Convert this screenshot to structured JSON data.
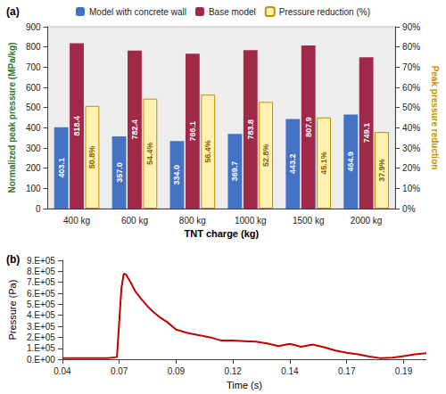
{
  "chart_data": [
    {
      "type": "bar",
      "title": "(a)",
      "categories": [
        "400 kg",
        "600 kg",
        "800 kg",
        "1000 kg",
        "1500 kg",
        "2000 kg"
      ],
      "x_label": "TNT charge (kg)",
      "y_label": "Normalized peak pressure (MPa/kg)",
      "y2_label": "Peak pressure reduction",
      "series": [
        {
          "name": "Model with concrete wall",
          "color": "#4472C4",
          "values": [
            403.1,
            357.0,
            334.0,
            369.7,
            443.2,
            464.9
          ],
          "value_labels": [
            "403.1",
            "357.0",
            "334.0",
            "369.7",
            "443.2",
            "464.9"
          ]
        },
        {
          "name": "Base model",
          "color": "#A0294A",
          "values": [
            818.4,
            782.4,
            766.1,
            783.8,
            807.9,
            749.1
          ],
          "value_labels": [
            "818.4",
            "782.4",
            "766.1",
            "783.8",
            "807.9",
            "749.1"
          ]
        },
        {
          "name": "Pressure reduction (%)",
          "color": "#FFF2B0",
          "axis": "y2",
          "values": [
            50.8,
            54.4,
            56.4,
            52.8,
            45.1,
            37.9
          ],
          "value_labels": [
            "50.8%",
            "54.4%",
            "56.4%",
            "52.8%",
            "45.1%",
            "37.9%"
          ]
        }
      ],
      "ylim": [
        0,
        900
      ],
      "yticks": [
        0,
        100,
        200,
        300,
        400,
        500,
        600,
        700,
        800,
        900
      ],
      "y2lim": [
        0,
        90
      ],
      "y2ticks": [
        {
          "value": 0,
          "label": "0%"
        },
        {
          "value": 10,
          "label": "10%"
        },
        {
          "value": 20,
          "label": "20%"
        },
        {
          "value": 30,
          "label": "30%"
        },
        {
          "value": 40,
          "label": "40%"
        },
        {
          "value": 50,
          "label": "50%"
        },
        {
          "value": 60,
          "label": "60%"
        },
        {
          "value": 70,
          "label": "70%"
        },
        {
          "value": 80,
          "label": "80%"
        },
        {
          "value": 90,
          "label": "90%"
        }
      ],
      "legend": "top",
      "data_labels": true,
      "grid": false
    },
    {
      "type": "line",
      "title": "(b)",
      "x_label": "Time (s)",
      "y_label": "Pressure (Pa)",
      "color": "#C00000",
      "x": [
        0.04,
        0.05,
        0.06,
        0.064,
        0.066,
        0.067,
        0.068,
        0.07,
        0.072,
        0.075,
        0.078,
        0.08,
        0.083,
        0.086,
        0.09,
        0.095,
        0.1,
        0.105,
        0.11,
        0.115,
        0.12,
        0.125,
        0.13,
        0.135,
        0.14,
        0.145,
        0.15,
        0.155,
        0.16,
        0.165,
        0.17,
        0.175,
        0.18,
        0.185,
        0.19,
        0.195,
        0.2
      ],
      "values": [
        10000,
        10000,
        10000,
        20000,
        650000,
        780000,
        770000,
        700000,
        620000,
        540000,
        470000,
        430000,
        380000,
        340000,
        270000,
        240000,
        220000,
        200000,
        170000,
        170000,
        165000,
        160000,
        145000,
        120000,
        140000,
        115000,
        135000,
        110000,
        80000,
        60000,
        45000,
        25000,
        10000,
        15000,
        30000,
        45000,
        55000
      ],
      "xlim": [
        0.04,
        0.2
      ],
      "xticks": [
        {
          "value": 0.04,
          "label": "0.04"
        },
        {
          "value": 0.065,
          "label": "0.07"
        },
        {
          "value": 0.09,
          "label": "0.09"
        },
        {
          "value": 0.115,
          "label": "0.12"
        },
        {
          "value": 0.14,
          "label": "0.14"
        },
        {
          "value": 0.165,
          "label": "0.17"
        },
        {
          "value": 0.19,
          "label": "0.19"
        }
      ],
      "ylim": [
        0,
        900000
      ],
      "yticks": [
        {
          "value": 0,
          "label": "0.E+00"
        },
        {
          "value": 100000,
          "label": "1.E+05"
        },
        {
          "value": 200000,
          "label": "2.E+05"
        },
        {
          "value": 300000,
          "label": "3.E+05"
        },
        {
          "value": 400000,
          "label": "4.E+05"
        },
        {
          "value": 500000,
          "label": "5.E+05"
        },
        {
          "value": 600000,
          "label": "6.E+05"
        },
        {
          "value": 700000,
          "label": "7.E+05"
        },
        {
          "value": 800000,
          "label": "8.E+05"
        },
        {
          "value": 900000,
          "label": "9.E+05"
        }
      ],
      "grid": false
    }
  ]
}
